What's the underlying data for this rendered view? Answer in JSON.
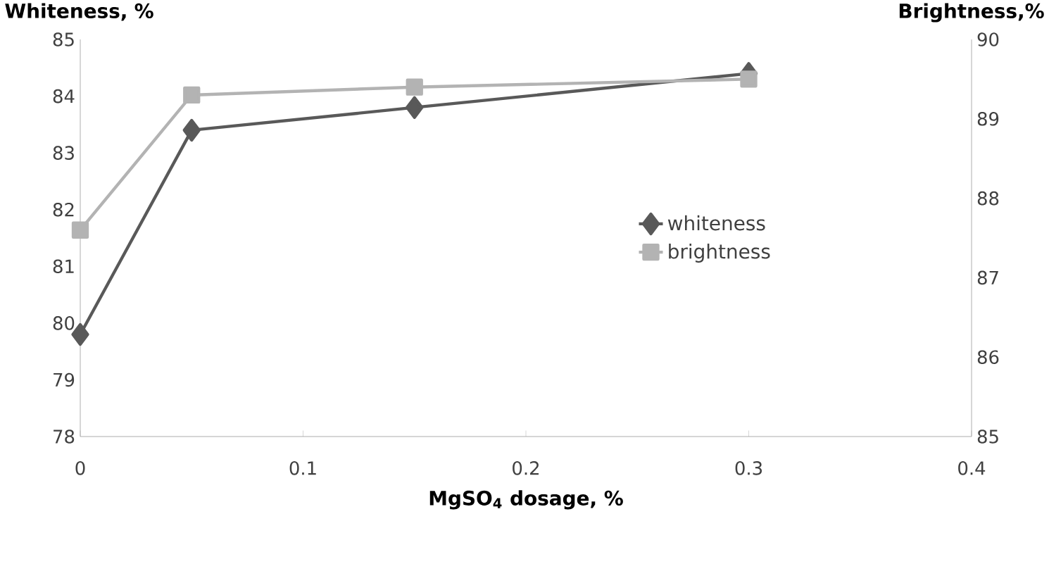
{
  "chart_data": {
    "type": "line",
    "xlabel": "MgSO$_{4}$ dosage, %",
    "ylabel": "Whiteness, %",
    "y2label": "Brightness,%",
    "x": [
      0,
      0.05,
      0.15,
      0.3
    ],
    "series": [
      {
        "name": "whiteness",
        "color": "#595959",
        "marker": "diamond",
        "values": [
          79.8,
          83.4,
          83.8,
          84.4
        ]
      },
      {
        "name": "brightness",
        "color": "#b3b3b3",
        "marker": "square",
        "axis": "y2",
        "values": [
          87.6,
          89.3,
          89.4,
          89.5
        ]
      }
    ],
    "xlim": [
      0,
      0.4
    ],
    "xticks": [
      0,
      0.1,
      0.2,
      0.3,
      0.4
    ],
    "ylim": [
      78,
      85
    ],
    "yticks": [
      78,
      79,
      80,
      81,
      82,
      83,
      84,
      85
    ],
    "y2lim": [
      85,
      90
    ],
    "y2ticks": [
      85,
      86,
      87,
      88,
      89,
      90
    ],
    "legend": "right",
    "grid": false,
    "line_style": "solid"
  }
}
